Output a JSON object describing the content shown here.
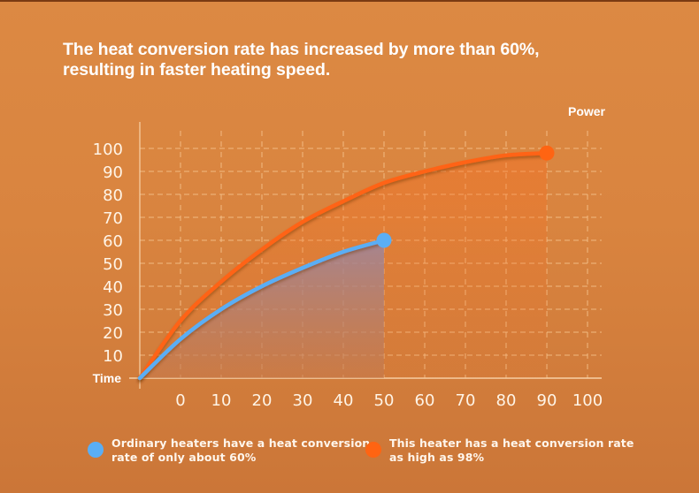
{
  "headline": {
    "line1": "The heat conversion rate has increased by more than 60%,",
    "line2": "resulting in faster heating speed."
  },
  "colors": {
    "background_top": "#DC8943",
    "background_bottom": "#CB7638",
    "top_band": "#7A3A12",
    "grid": "#F6C48E",
    "axis": "#F8D2A8",
    "this_heater": "#FF6412",
    "ordinary_heater": "#5AAEF5",
    "ordinary_fill": "#A07E78"
  },
  "chart_data": {
    "type": "area",
    "title": "The heat conversion rate has increased by more than 60%, resulting in faster heating speed.",
    "xlabel": "Time",
    "ylabel": "Power",
    "x_ticks": [
      0,
      10,
      20,
      30,
      40,
      50,
      60,
      70,
      80,
      90,
      100
    ],
    "y_ticks": [
      10,
      20,
      30,
      40,
      50,
      60,
      70,
      80,
      90,
      100
    ],
    "x_origin": -10,
    "xlim": [
      -10,
      105
    ],
    "ylim": [
      0,
      100
    ],
    "grid": true,
    "legend_position": "bottom",
    "series": [
      {
        "name": "Ordinary heaters have a heat conversion rate of only about 60%",
        "legend_lines": [
          "Ordinary heaters have a heat conversion",
          "rate of only about 60%"
        ],
        "color": "#5AAEF5",
        "x": [
          -10,
          0,
          10,
          20,
          30,
          40,
          50
        ],
        "y": [
          0,
          17,
          30,
          40,
          48,
          55,
          60
        ],
        "end_marker": true
      },
      {
        "name": "This heater has a heat conversion rate as high as 98%",
        "legend_lines": [
          "This heater has a heat conversion rate",
          "as high as 98%"
        ],
        "color": "#FF6412",
        "x": [
          -10,
          0,
          10,
          20,
          30,
          40,
          50,
          60,
          70,
          80,
          90
        ],
        "y": [
          0,
          25,
          42,
          56,
          68,
          77,
          85,
          90,
          94,
          97,
          98
        ],
        "end_marker": true
      }
    ]
  }
}
